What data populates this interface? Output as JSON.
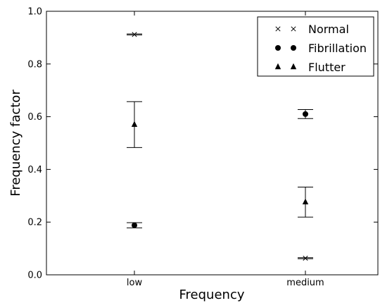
{
  "chart_data": {
    "type": "scatter",
    "title": "",
    "xlabel": "Frequency",
    "ylabel": "Frequency factor",
    "categories": [
      "low",
      "medium"
    ],
    "ylim": [
      0.0,
      1.0
    ],
    "yticks": [
      "0.0",
      "0.2",
      "0.4",
      "0.6",
      "0.8",
      "1.0"
    ],
    "grid": false,
    "legend_position": "top-right",
    "series": [
      {
        "name": "Normal",
        "marker": "x",
        "values": [
          0.912,
          0.063
        ],
        "errors": [
          0.002,
          0.002
        ]
      },
      {
        "name": "Fibrillation",
        "marker": "circle",
        "values": [
          0.188,
          0.61
        ],
        "errors": [
          0.01,
          0.017
        ]
      },
      {
        "name": "Flutter",
        "marker": "triangle",
        "values": [
          0.57,
          0.276
        ],
        "errors": [
          0.087,
          0.057
        ]
      }
    ]
  }
}
